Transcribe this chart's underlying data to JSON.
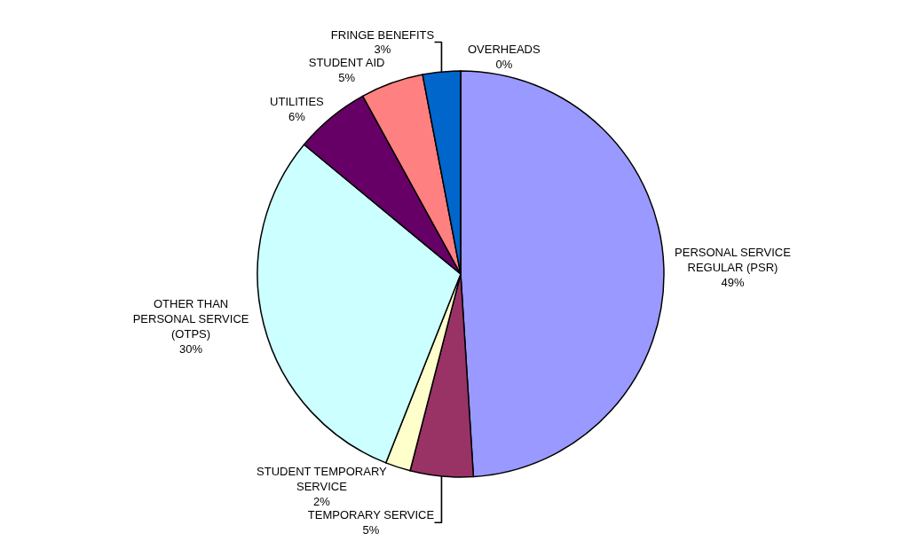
{
  "chart_data": {
    "type": "pie",
    "categories": [
      "PERSONAL SERVICE REGULAR (PSR)",
      "TEMPORARY SERVICE",
      "STUDENT TEMPORARY SERVICE",
      "OTHER THAN PERSONAL SERVICE (OTPS)",
      "UTILITIES",
      "STUDENT AID",
      "FRINGE BENEFITS",
      "OVERHEADS"
    ],
    "values": [
      49,
      5,
      2,
      30,
      6,
      5,
      3,
      0
    ],
    "value_labels": [
      "49%",
      "5%",
      "2%",
      "30%",
      "6%",
      "5%",
      "3%",
      "0%"
    ],
    "colors": [
      "#9999ff",
      "#993366",
      "#ffffcc",
      "#ccffff",
      "#660066",
      "#ff8080",
      "#0066cc",
      "#c0c0c0"
    ],
    "legend": false
  }
}
